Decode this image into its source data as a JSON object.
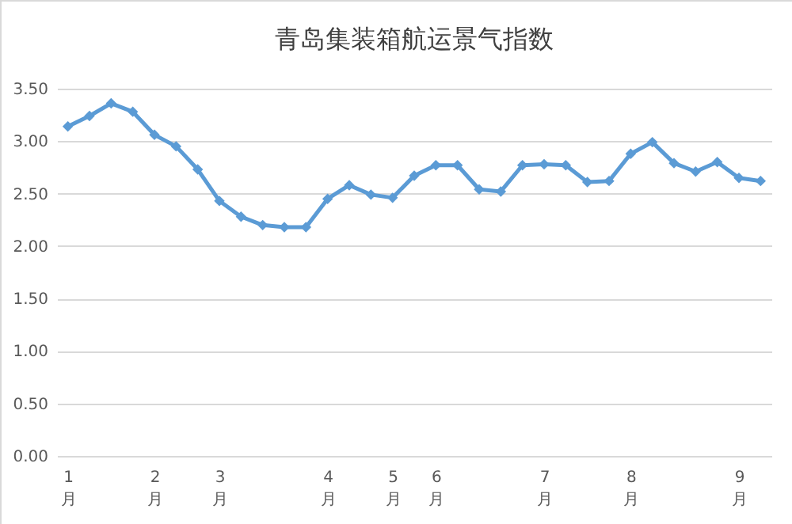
{
  "chart_data": {
    "type": "line",
    "title": "青岛集装箱航运景气指数",
    "categories": [
      "1月",
      null,
      null,
      null,
      "2月",
      null,
      null,
      "3月",
      null,
      null,
      null,
      null,
      "4月",
      null,
      null,
      "5月",
      null,
      "6月",
      null,
      null,
      null,
      null,
      "7月",
      null,
      null,
      null,
      "8月",
      null,
      null,
      null,
      null,
      "9月",
      null
    ],
    "series": [
      {
        "color": "#5b9bd5",
        "values": [
          3.14,
          3.24,
          3.36,
          3.28,
          3.06,
          2.95,
          2.73,
          2.43,
          2.28,
          2.2,
          2.18,
          2.18,
          2.45,
          2.58,
          2.49,
          2.46,
          2.67,
          2.77,
          2.77,
          2.54,
          2.52,
          2.77,
          2.78,
          2.77,
          2.61,
          2.62,
          2.88,
          2.99,
          2.79,
          2.71,
          2.8,
          2.65,
          2.62
        ]
      }
    ],
    "ylim": [
      0,
      3.5
    ],
    "yticks": [
      {
        "value": 0,
        "label": "0.00"
      },
      {
        "value": 0.5,
        "label": "0.50"
      },
      {
        "value": 1,
        "label": "1.00"
      },
      {
        "value": 1.5,
        "label": "1.50"
      },
      {
        "value": 2,
        "label": "2.00"
      },
      {
        "value": 2.5,
        "label": "2.50"
      },
      {
        "value": 3,
        "label": "3.00"
      },
      {
        "value": 3.5,
        "label": "3.50"
      }
    ],
    "grid": "y",
    "marker": "diamond",
    "line_style": "solid"
  }
}
